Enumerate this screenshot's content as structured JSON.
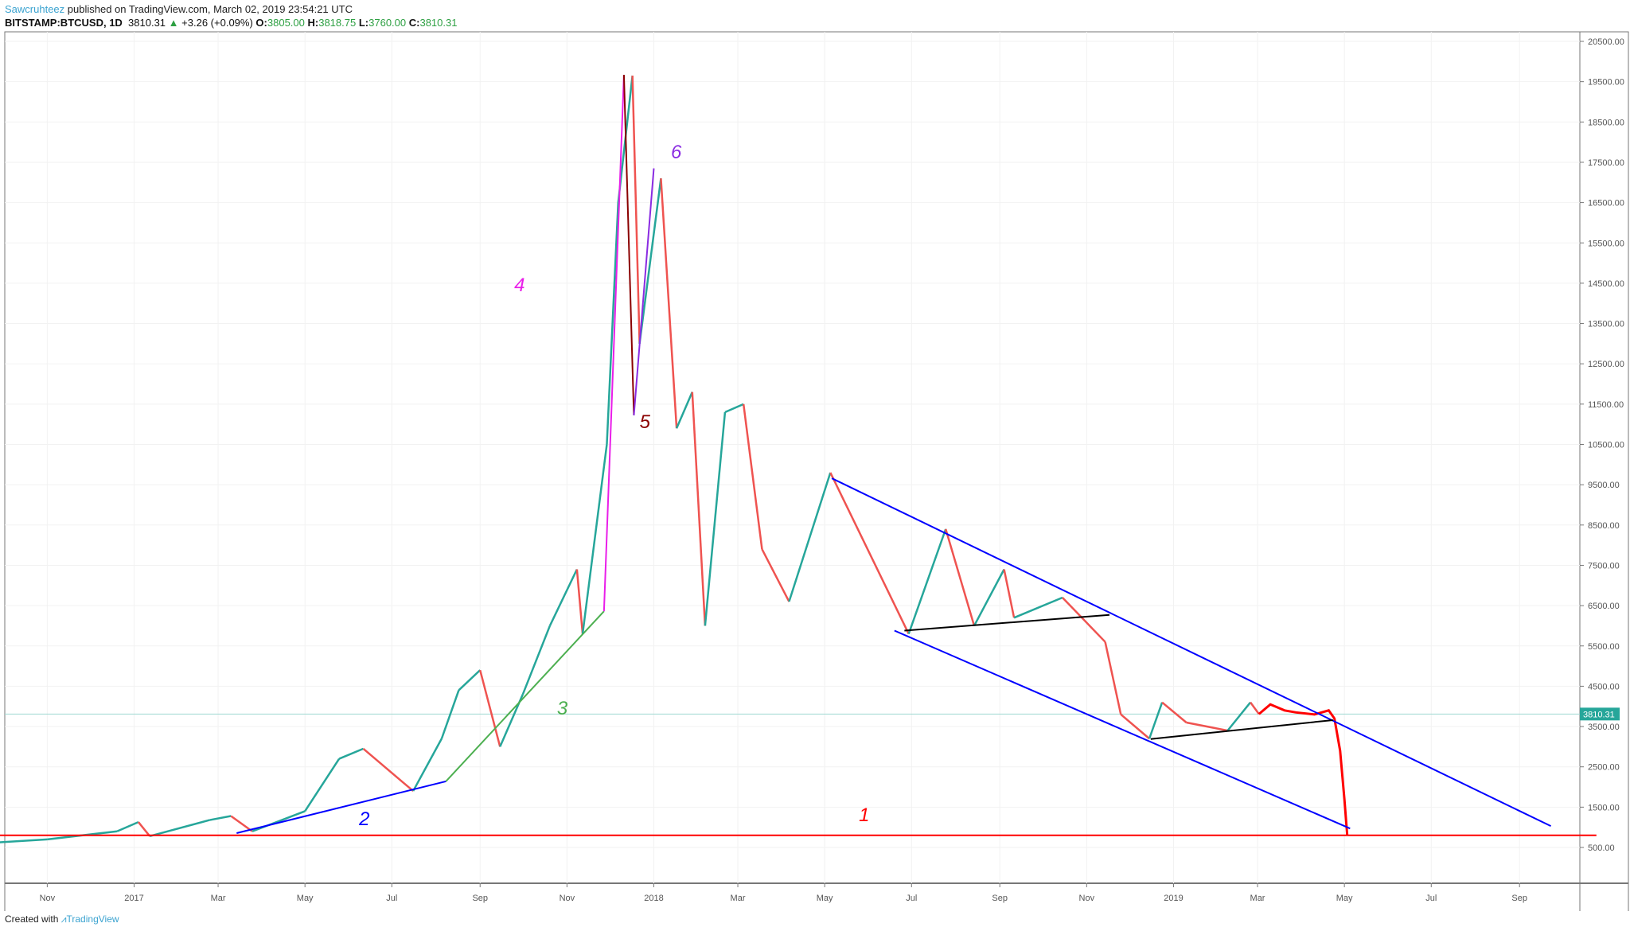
{
  "header": {
    "author": "Sawcruhteez",
    "published": "published on TradingView.com, March 02, 2019 23:54:21 UTC",
    "symbol": "BITSTAMP:BTCUSD, 1D",
    "last": "3810.31",
    "change": "+3.26 (+0.09%)",
    "open_label": "O:",
    "open": "3805.00",
    "high_label": "H:",
    "high": "3818.75",
    "low_label": "L:",
    "low": "3760.00",
    "close_label": "C:",
    "close": "3810.31"
  },
  "footer": {
    "created_with": "Created with",
    "brand": "TradingView"
  },
  "colors": {
    "up": "#26a69a",
    "down": "#ef5350",
    "price_tag": "#26a69a",
    "projection": "#ff0000"
  },
  "chart_data": {
    "type": "line",
    "ylim": [
      0,
      21000
    ],
    "y_ticks": [
      "20500.00",
      "19500.00",
      "18500.00",
      "17500.00",
      "16500.00",
      "15500.00",
      "14500.00",
      "13500.00",
      "12500.00",
      "11500.00",
      "10500.00",
      "9500.00",
      "8500.00",
      "7500.00",
      "6500.00",
      "5500.00",
      "4500.00",
      "3500.00",
      "2500.00",
      "1500.00",
      "500.00"
    ],
    "x_ticks": [
      {
        "label": "Nov",
        "date": "2016-11-01"
      },
      {
        "label": "2017",
        "date": "2017-01-01"
      },
      {
        "label": "Mar",
        "date": "2017-03-01"
      },
      {
        "label": "May",
        "date": "2017-05-01"
      },
      {
        "label": "Jul",
        "date": "2017-07-01"
      },
      {
        "label": "Sep",
        "date": "2017-09-01"
      },
      {
        "label": "Nov",
        "date": "2017-11-01"
      },
      {
        "label": "2018",
        "date": "2018-01-01"
      },
      {
        "label": "Mar",
        "date": "2018-03-01"
      },
      {
        "label": "May",
        "date": "2018-05-01"
      },
      {
        "label": "Jul",
        "date": "2018-07-01"
      },
      {
        "label": "Sep",
        "date": "2018-09-01"
      },
      {
        "label": "Nov",
        "date": "2018-11-01"
      },
      {
        "label": "2019",
        "date": "2019-01-01"
      },
      {
        "label": "Mar",
        "date": "2019-03-01"
      },
      {
        "label": "May",
        "date": "2019-05-01"
      },
      {
        "label": "Jul",
        "date": "2019-07-01"
      },
      {
        "label": "Sep",
        "date": "2019-09-01"
      }
    ],
    "last_price": {
      "value": 3810.31,
      "label": "3810.31"
    },
    "price": [
      [
        "2016-09-15",
        600
      ],
      [
        "2016-11-01",
        700
      ],
      [
        "2016-12-20",
        900
      ],
      [
        "2017-01-04",
        1130
      ],
      [
        "2017-01-12",
        780
      ],
      [
        "2017-02-23",
        1180
      ],
      [
        "2017-03-10",
        1280
      ],
      [
        "2017-03-25",
        900
      ],
      [
        "2017-05-01",
        1400
      ],
      [
        "2017-05-25",
        2700
      ],
      [
        "2017-06-11",
        2950
      ],
      [
        "2017-07-16",
        1900
      ],
      [
        "2017-08-05",
        3200
      ],
      [
        "2017-08-17",
        4400
      ],
      [
        "2017-09-01",
        4900
      ],
      [
        "2017-09-15",
        3000
      ],
      [
        "2017-10-01",
        4300
      ],
      [
        "2017-10-20",
        6000
      ],
      [
        "2017-11-08",
        7400
      ],
      [
        "2017-11-12",
        5800
      ],
      [
        "2017-11-29",
        10500
      ],
      [
        "2017-12-07",
        16500
      ],
      [
        "2017-12-17",
        19650
      ],
      [
        "2017-12-22",
        13000
      ],
      [
        "2018-01-06",
        17100
      ],
      [
        "2018-01-17",
        10900
      ],
      [
        "2018-01-28",
        11800
      ],
      [
        "2018-02-06",
        6000
      ],
      [
        "2018-02-20",
        11300
      ],
      [
        "2018-03-05",
        11500
      ],
      [
        "2018-03-18",
        7900
      ],
      [
        "2018-04-06",
        6600
      ],
      [
        "2018-05-05",
        9800
      ],
      [
        "2018-06-29",
        5800
      ],
      [
        "2018-07-25",
        8400
      ],
      [
        "2018-08-14",
        6000
      ],
      [
        "2018-09-04",
        7400
      ],
      [
        "2018-09-11",
        6200
      ],
      [
        "2018-10-15",
        6700
      ],
      [
        "2018-11-14",
        5600
      ],
      [
        "2018-11-25",
        3800
      ],
      [
        "2018-12-15",
        3200
      ],
      [
        "2018-12-24",
        4100
      ],
      [
        "2019-01-10",
        3600
      ],
      [
        "2019-02-08",
        3400
      ],
      [
        "2019-02-24",
        4100
      ],
      [
        "2019-03-02",
        3810
      ]
    ],
    "projection": [
      [
        "2019-03-02",
        3810
      ],
      [
        "2019-03-10",
        4050
      ],
      [
        "2019-03-20",
        3900
      ],
      [
        "2019-03-28",
        3850
      ],
      [
        "2019-04-10",
        3800
      ],
      [
        "2019-04-20",
        3900
      ],
      [
        "2019-04-24",
        3700
      ],
      [
        "2019-04-28",
        2900
      ],
      [
        "2019-05-01",
        1700
      ],
      [
        "2019-05-03",
        800
      ]
    ],
    "drawings": [
      {
        "label": "1",
        "color": "#ff0000",
        "from": [
          "2016-09-01",
          800
        ],
        "to": [
          "2019-10-25",
          800
        ],
        "label_at": [
          "2018-05-25",
          1150
        ]
      },
      {
        "label": "2",
        "color": "#0000ff",
        "from": [
          "2017-03-14",
          855
        ],
        "to": [
          "2017-08-08",
          2140
        ],
        "label_at": [
          "2017-06-08",
          1050
        ]
      },
      {
        "label": "3",
        "color": "#4caf50",
        "from": [
          "2017-08-08",
          2140
        ],
        "to": [
          "2017-11-27",
          6360
        ],
        "label_at": [
          "2017-10-25",
          3800
        ]
      },
      {
        "label": "4",
        "color": "#e91ee9",
        "from": [
          "2017-11-27",
          6360
        ],
        "to": [
          "2017-12-11",
          19670
        ],
        "label_at": [
          "2017-09-25",
          14300
        ]
      },
      {
        "label": "5",
        "color": "#8b0000",
        "from": [
          "2017-12-11",
          19670
        ],
        "to": [
          "2017-12-18",
          11220
        ],
        "label_at": [
          "2017-12-22",
          10900
        ]
      },
      {
        "label": "6",
        "color": "#8a2be2",
        "from": [
          "2017-12-18",
          11220
        ],
        "to": [
          "2018-01-01",
          17350
        ],
        "label_at": [
          "2018-01-13",
          17600
        ]
      },
      {
        "label": "",
        "color": "#0000ff",
        "from": [
          "2018-05-06",
          9660
        ],
        "to": [
          "2019-09-23",
          1030
        ]
      },
      {
        "label": "",
        "color": "#0000ff",
        "from": [
          "2018-06-19",
          5880
        ],
        "to": [
          "2019-05-05",
          970
        ]
      },
      {
        "label": "",
        "color": "#000000",
        "from": [
          "2018-06-26",
          5880
        ],
        "to": [
          "2018-11-17",
          6270
        ]
      },
      {
        "label": "",
        "color": "#000000",
        "from": [
          "2018-12-16",
          3190
        ],
        "to": [
          "2019-04-23",
          3660
        ]
      }
    ]
  }
}
